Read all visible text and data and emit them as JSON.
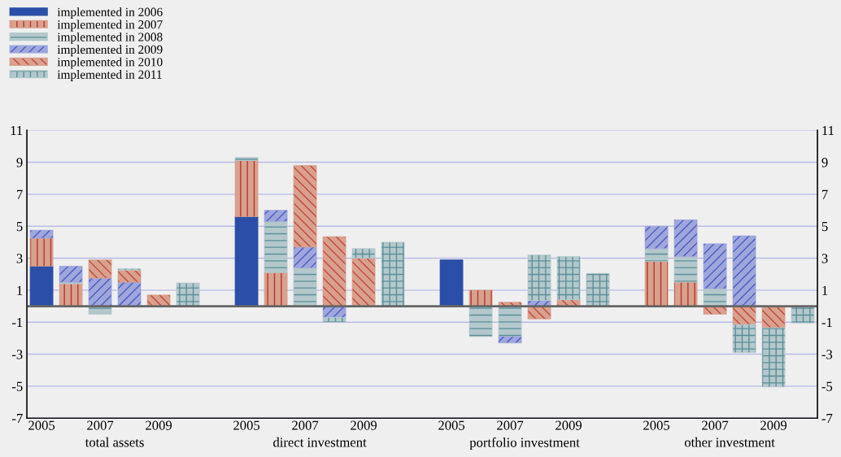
{
  "chart_data": {
    "type": "bar",
    "stacked": true,
    "categories": [
      "2005",
      null,
      "2007",
      null,
      "2009",
      null,
      null,
      "2005",
      null,
      "2007",
      null,
      "2009",
      null,
      null,
      "2005",
      null,
      "2007",
      null,
      "2009",
      null,
      null,
      "2005",
      null,
      "2007",
      null,
      "2009",
      null
    ],
    "series": [
      {
        "name": "implemented in 2006",
        "color": "#2b4fa8",
        "values": [
          2.5,
          null,
          null,
          null,
          null,
          null,
          null,
          5.6,
          null,
          null,
          null,
          null,
          null,
          null,
          2.9,
          null,
          null,
          null,
          null,
          null,
          null,
          null,
          null,
          null,
          null,
          null,
          null
        ]
      },
      {
        "name": "implemented in 2007",
        "color": "#d9a08e",
        "values": [
          1.75,
          1.4,
          null,
          null,
          null,
          null,
          null,
          3.5,
          2.1,
          null,
          null,
          null,
          null,
          null,
          null,
          1.0,
          null,
          null,
          null,
          null,
          null,
          2.8,
          1.5,
          null,
          null,
          null,
          null
        ]
      },
      {
        "name": "implemented in 2008",
        "color": "#b4c8cc",
        "values": [
          null,
          0.1,
          -0.5,
          null,
          null,
          null,
          null,
          0.2,
          3.2,
          2.4,
          null,
          null,
          null,
          null,
          null,
          -1.9,
          -1.9,
          null,
          null,
          null,
          null,
          0.8,
          1.6,
          1.1,
          null,
          null,
          null
        ]
      },
      {
        "name": "implemented in 2009",
        "color": "#9ea6dc",
        "values": [
          0.5,
          1.0,
          1.75,
          1.5,
          null,
          null,
          null,
          null,
          0.7,
          1.3,
          -0.7,
          null,
          null,
          null,
          null,
          null,
          -0.4,
          0.35,
          null,
          null,
          null,
          1.4,
          2.3,
          2.8,
          4.4,
          null,
          null
        ]
      },
      {
        "name": "implemented in 2010",
        "color": "#d9a08e",
        "values": [
          null,
          null,
          1.15,
          0.75,
          0.7,
          null,
          null,
          null,
          null,
          5.1,
          4.35,
          3.0,
          null,
          null,
          null,
          null,
          0.25,
          -0.8,
          0.4,
          null,
          null,
          null,
          null,
          -0.5,
          -1.15,
          -1.35,
          null
        ]
      },
      {
        "name": "implemented in 2011",
        "color": "#b4c8cc",
        "values": [
          null,
          null,
          null,
          0.1,
          null,
          1.45,
          null,
          null,
          null,
          null,
          -0.3,
          0.6,
          4.0,
          null,
          null,
          null,
          null,
          2.85,
          2.7,
          2.05,
          null,
          null,
          null,
          null,
          -1.75,
          -3.7,
          -1.05
        ]
      }
    ],
    "ylim": [
      -7,
      11
    ],
    "yticks": [
      -7,
      -5,
      -3,
      -1,
      1,
      3,
      5,
      7,
      9,
      11
    ],
    "y2lim": [
      -7,
      11
    ],
    "y2ticks": [
      -7,
      -5,
      -3,
      -1,
      1,
      3,
      5,
      7,
      9,
      11
    ],
    "ref_lines": [
      {
        "axis": "y",
        "value": 0,
        "color": "#666666"
      }
    ],
    "annotations": [
      "total assets",
      "direct investment",
      "portfolio investment",
      "other investment"
    ],
    "grid": true,
    "legend": "top left"
  }
}
